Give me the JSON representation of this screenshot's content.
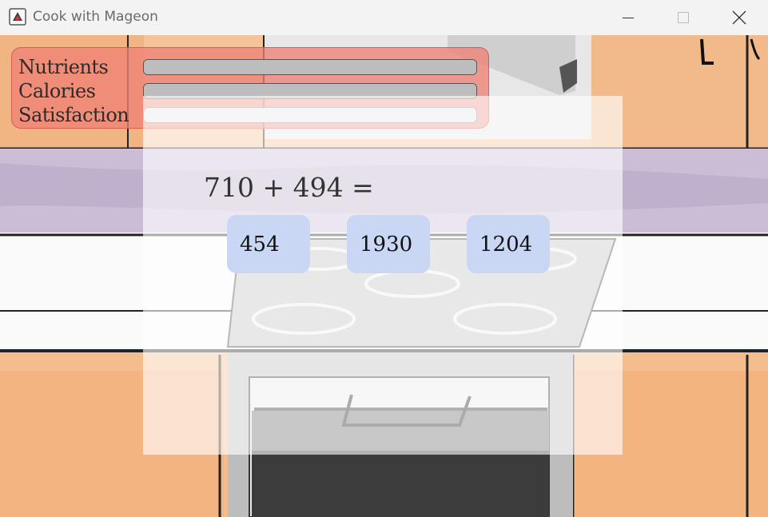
{
  "window": {
    "title": "Cook with Mageon",
    "controls": [
      "minimize-icon",
      "maximize-icon",
      "close-icon"
    ]
  },
  "stats": [
    {
      "label": "Nutrients",
      "level": 1.0
    },
    {
      "label": "Calories",
      "level": 1.0
    },
    {
      "label": "Satisfaction",
      "level": 0.0
    }
  ],
  "quiz": {
    "equation": "710 + 494 =",
    "answers": [
      "454",
      "1930",
      "1204"
    ]
  },
  "colors": {
    "stats_panel": "#ee8276",
    "answer_button": "#c9d7f4",
    "bar_fill": "#bdbdbd"
  }
}
